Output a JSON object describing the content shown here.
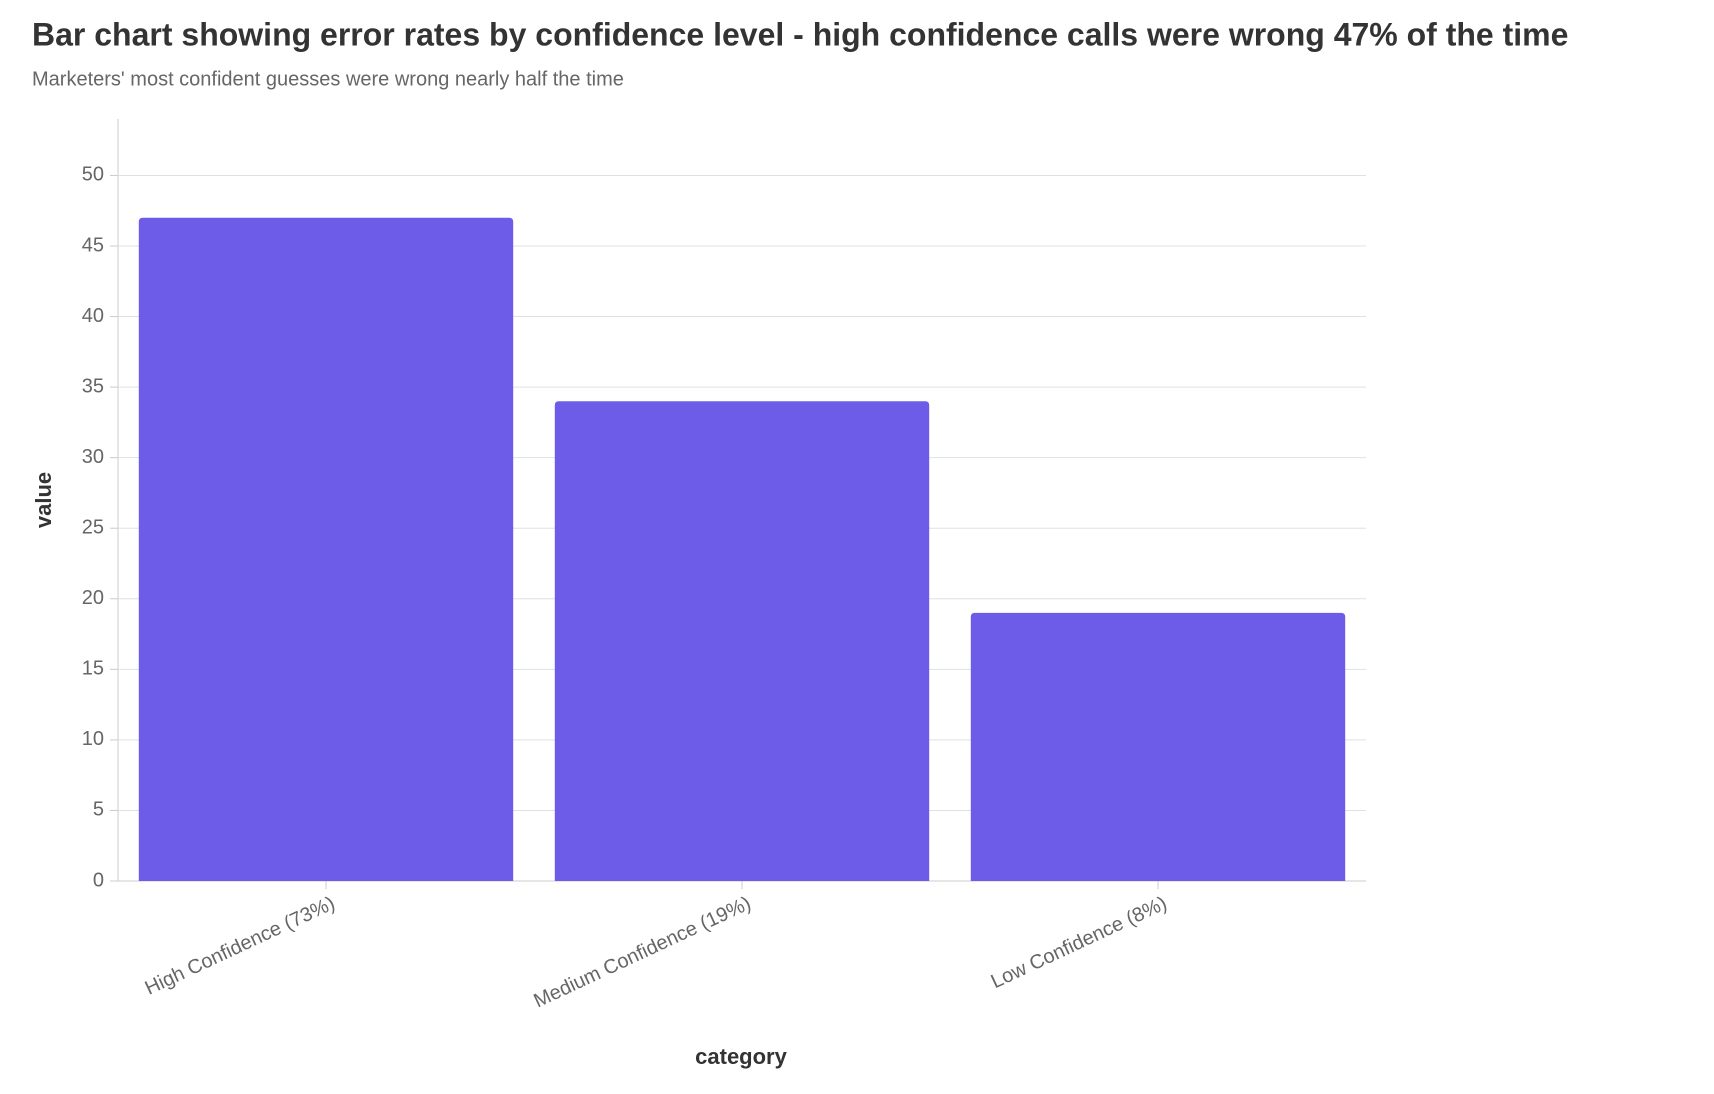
{
  "chart_data": {
    "type": "bar",
    "title": "Bar chart showing error rates by confidence level - high confidence calls were wrong 47% of the time",
    "subtitle": "Marketers' most confident guesses were wrong nearly half the time",
    "x_label": "category",
    "y_label": "value",
    "categories": [
      "High Confidence (73%)",
      "Medium Confidence (19%)",
      "Low Confidence (8%)"
    ],
    "values": [
      47,
      34,
      19
    ],
    "color": "#6c5ce7",
    "ylim": [
      0,
      54
    ],
    "yticks": [
      0,
      5,
      10,
      15,
      20,
      25,
      30,
      35,
      40,
      45,
      50
    ],
    "grid": true
  }
}
